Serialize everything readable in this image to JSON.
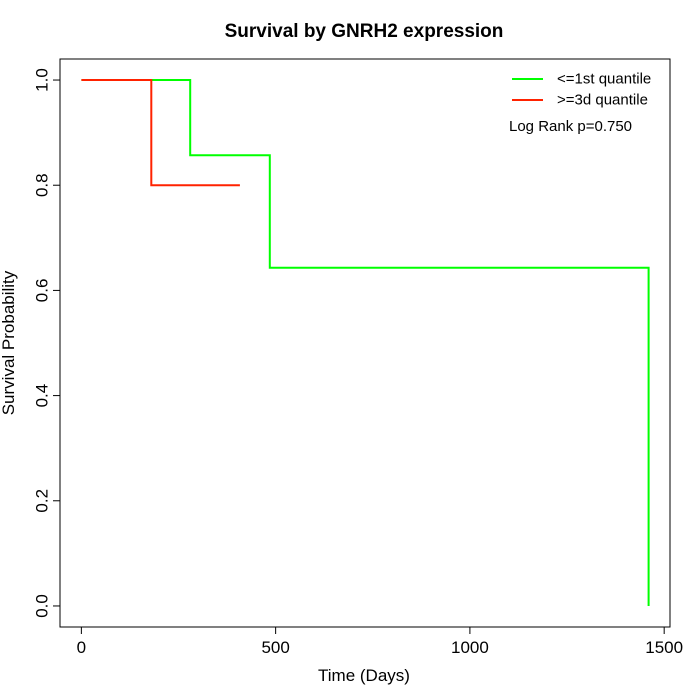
{
  "chart_data": {
    "type": "line",
    "step": true,
    "title": "Survival by GNRH2 expression",
    "xlabel": "Time (Days)",
    "ylabel": "Survival Probability",
    "xlim": [
      -55,
      1515
    ],
    "ylim": [
      -0.04,
      1.04
    ],
    "xticks": [
      0,
      500,
      1000,
      1500
    ],
    "xtick_labels": [
      "0",
      "500",
      "1000",
      "1500"
    ],
    "yticks": [
      0.0,
      0.2,
      0.4,
      0.6,
      0.8,
      1.0
    ],
    "ytick_labels": [
      "0.0",
      "0.2",
      "0.4",
      "0.6",
      "0.8",
      "1.0"
    ],
    "grid": false,
    "legend_position": "top-right",
    "annotation": "Log Rank p=0.750",
    "series": [
      {
        "name": "<=1st quantile",
        "color": "#00ff00",
        "x": [
          0,
          280,
          280,
          485,
          485,
          1460,
          1460
        ],
        "y": [
          1.0,
          1.0,
          0.857,
          0.857,
          0.643,
          0.643,
          0.0
        ]
      },
      {
        "name": ">=3d quantile",
        "color": "#ff2200",
        "x": [
          0,
          180,
          180,
          408
        ],
        "y": [
          1.0,
          1.0,
          0.8,
          0.8
        ]
      }
    ]
  }
}
